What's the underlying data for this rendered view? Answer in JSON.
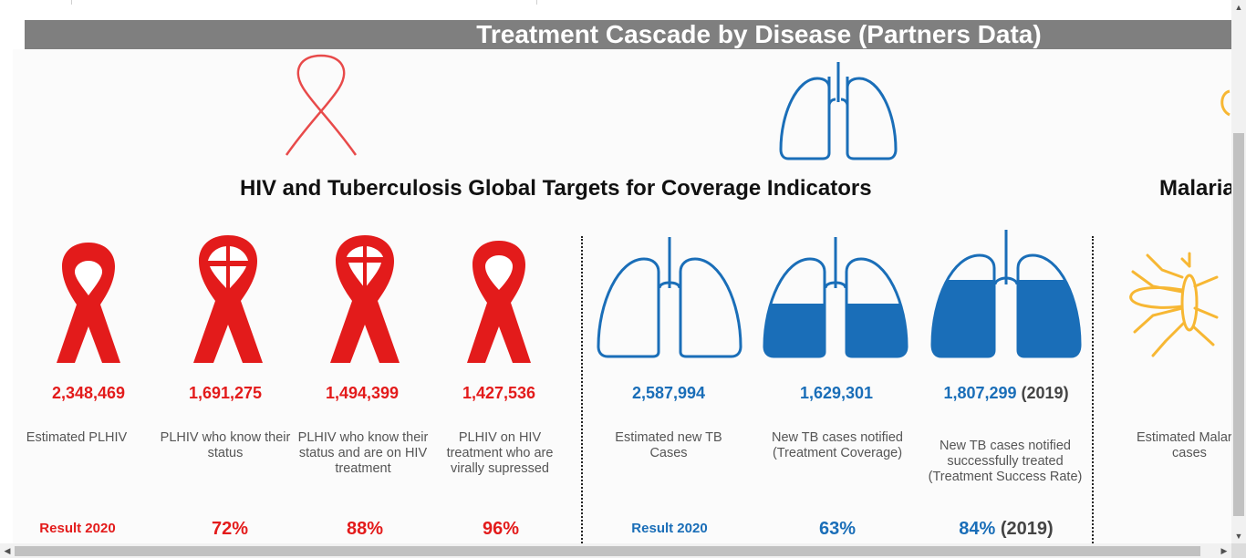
{
  "dashboard": {
    "title": "Treatment Cascade by Disease (Partners Data)",
    "hiv_tb_section_title": "HIV and Tuberculosis Global Targets for Coverage Indicators",
    "malaria_section_title": "Malaria"
  },
  "hiv": {
    "color": "#e31b1b",
    "indicators": [
      {
        "value": "2,348,469",
        "label": "Estimated PLHIV",
        "bottom": "Result  2020"
      },
      {
        "value": "1,691,275",
        "label": "PLHIV who know their status",
        "bottom": "72%"
      },
      {
        "value": "1,494,399",
        "label": "PLHIV who know their status and are on HIV treatment",
        "bottom": "88%"
      },
      {
        "value": "1,427,536",
        "label": "PLHIV on HIV treatment who are virally supressed",
        "bottom": "96%"
      }
    ]
  },
  "tb": {
    "color": "#1a6eb8",
    "indicators": [
      {
        "value": "2,587,994",
        "label": "Estimated new TB Cases",
        "bottom": "Result  2020",
        "fill": 0
      },
      {
        "value": "1,629,301",
        "label": "New TB cases notified (Treatment Coverage)",
        "bottom": "63%",
        "fill": 0.63
      },
      {
        "value": "1,807,299",
        "year": "(2019)",
        "label": "New TB cases notified successfully treated (Treatment Success Rate)",
        "bottom": "84%",
        "bottom_year": "(2019)",
        "fill": 0.84
      }
    ]
  },
  "malaria": {
    "color": "#f7b733",
    "indicators": [
      {
        "label": "Estimated Malaria cases"
      }
    ]
  },
  "icons": {
    "hiv_header": "hiv-ribbon-outline-icon",
    "tb_header": "lungs-outline-icon",
    "malaria_header": "mosquito-icon"
  }
}
